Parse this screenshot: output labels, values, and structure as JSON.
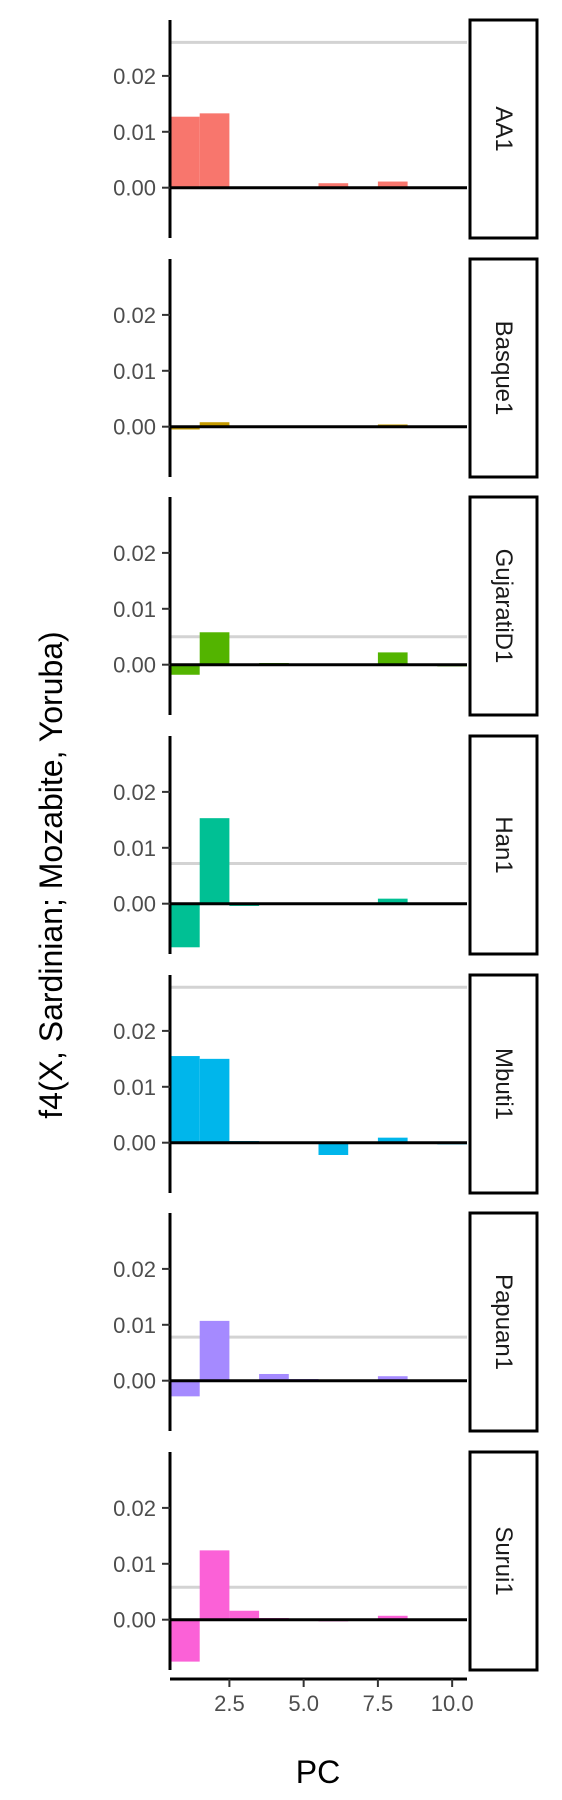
{
  "chart_data": {
    "type": "bar",
    "facet": "wrap-vertical",
    "ylabel": "f4(X, Sardinian; Mozabite, Yoruba)",
    "xlabel": "PC",
    "x_ticks": [
      2.5,
      5.0,
      7.5,
      10.0
    ],
    "x_tick_labels": [
      "2.5",
      "5.0",
      "7.5",
      "10.0"
    ],
    "xlim": [
      0.5,
      10.5
    ],
    "y_ticks": [
      0.0,
      0.01,
      0.02
    ],
    "y_tick_labels": [
      "0.00",
      "0.01",
      "0.02"
    ],
    "ylim": [
      -0.009,
      0.03
    ],
    "pcs": [
      1,
      2,
      3,
      4,
      5,
      6,
      7,
      8,
      9,
      10
    ],
    "panels": [
      {
        "label": "AA1",
        "color": "#F8766D",
        "reference": 0.026,
        "values": [
          0.0127,
          0.0133,
          0.0002,
          0.0001,
          0.0,
          0.0008,
          0.0001,
          0.0011,
          0.0002,
          0.0001
        ]
      },
      {
        "label": "Basque1",
        "color": "#C49A00",
        "reference": null,
        "values": [
          -0.0005,
          0.0008,
          0.0001,
          0.0001,
          0.0,
          0.0,
          0.0001,
          0.0004,
          0.0001,
          0.0
        ]
      },
      {
        "label": "GujaratiD1",
        "color": "#53B400",
        "reference": 0.005,
        "values": [
          -0.0018,
          0.0058,
          0.0002,
          0.0003,
          0.0001,
          0.0,
          0.0001,
          0.0022,
          0.0001,
          -0.0003
        ]
      },
      {
        "label": "Han1",
        "color": "#00C094",
        "reference": 0.0072,
        "values": [
          -0.0078,
          0.0153,
          -0.0004,
          0.0001,
          0.0,
          0.0,
          0.0001,
          0.0009,
          0.0001,
          -0.0002
        ]
      },
      {
        "label": "Mbuti1",
        "color": "#00B6EB",
        "reference": 0.0278,
        "values": [
          0.0155,
          0.015,
          0.0003,
          0.0002,
          0.0,
          -0.0022,
          0.0001,
          0.0009,
          0.0002,
          -0.0003
        ]
      },
      {
        "label": "Papuan1",
        "color": "#A58AFF",
        "reference": 0.0078,
        "values": [
          -0.0028,
          0.0107,
          0.0002,
          0.0012,
          0.0003,
          0.0002,
          0.0001,
          0.0008,
          0.0002,
          0.0001
        ]
      },
      {
        "label": "Surui1",
        "color": "#FB61D7",
        "reference": 0.0058,
        "values": [
          -0.0075,
          0.0124,
          0.0016,
          0.0003,
          0.0,
          -0.0003,
          0.0001,
          0.0007,
          0.0002,
          0.0002
        ]
      }
    ]
  }
}
